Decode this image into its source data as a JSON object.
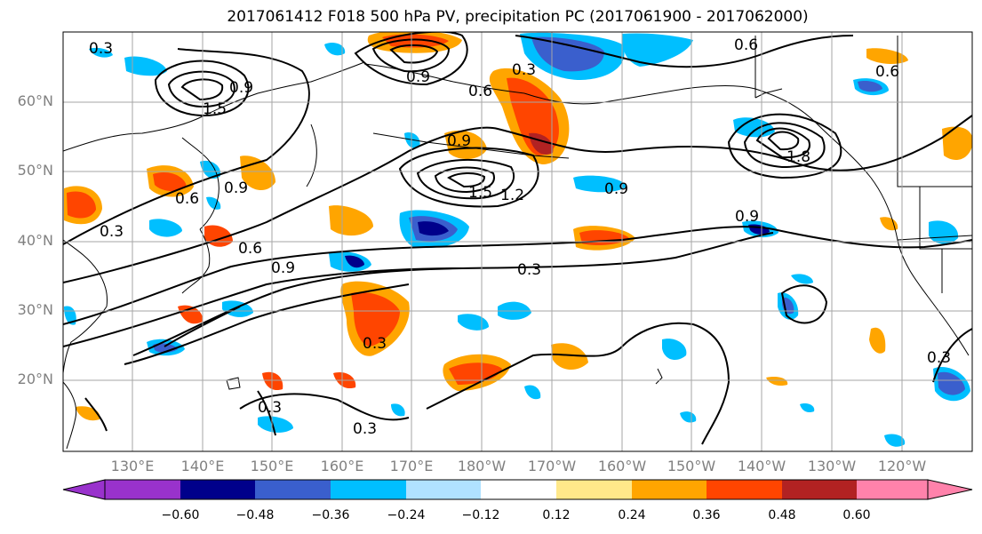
{
  "title": "2017061412 F018 500 hPa PV, precipitation PC (2017061900 - 2017062000)",
  "lat_labels": [
    "60°N",
    "50°N",
    "40°N",
    "30°N",
    "20°N"
  ],
  "lon_labels": [
    "130°E",
    "140°E",
    "150°E",
    "160°E",
    "170°E",
    "180°W",
    "170°W",
    "160°W",
    "150°W",
    "140°W",
    "130°W",
    "120°W"
  ],
  "contour_labels": [
    "0.3",
    "0.6",
    "0.9",
    "1.2",
    "1.5",
    "1.8"
  ],
  "colorbar": {
    "ticks": [
      "−0.60",
      "−0.48",
      "−0.36",
      "−0.24",
      "−0.12",
      "0.12",
      "0.24",
      "0.36",
      "0.48",
      "0.60"
    ],
    "colors": [
      "#9932cc",
      "#00008b",
      "#3a5fcd",
      "#00bfff",
      "#b0e2ff",
      "#ffffff",
      "#ffe88a",
      "#ffa500",
      "#ff4500",
      "#b22222",
      "#ff82ab"
    ]
  }
}
